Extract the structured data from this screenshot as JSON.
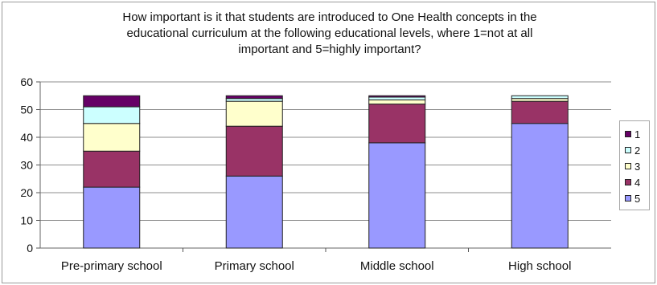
{
  "chart_data": {
    "type": "bar",
    "stacked": true,
    "title": "How important is it that students are introduced to One Health concepts in the educational curriculum at the following educational levels, where 1=not at all important and 5=highly important?",
    "title_lines": [
      "How important is it that students are introduced to One Health concepts in the",
      "educational curriculum at the following educational levels, where 1=not at all",
      "important and 5=highly important?"
    ],
    "categories": [
      "Pre-primary school",
      "Primary school",
      "Middle school",
      "High school"
    ],
    "series": [
      {
        "name": "5",
        "color": "#9999ff",
        "values": [
          22,
          26,
          38,
          45
        ]
      },
      {
        "name": "4",
        "color": "#993366",
        "values": [
          13,
          18,
          14,
          8
        ]
      },
      {
        "name": "3",
        "color": "#ffffcc",
        "values": [
          10,
          9,
          1.5,
          1
        ]
      },
      {
        "name": "2",
        "color": "#ccffff",
        "values": [
          6,
          1,
          1,
          1
        ]
      },
      {
        "name": "1",
        "color": "#660066",
        "values": [
          4,
          1,
          0.5,
          0
        ]
      }
    ],
    "ylim": [
      0,
      60
    ],
    "yticks": [
      0,
      10,
      20,
      30,
      40,
      50,
      60
    ],
    "xlabel": "",
    "ylabel": "",
    "grid": true,
    "legend": "right",
    "legend_order": [
      "1",
      "2",
      "3",
      "4",
      "5"
    ]
  }
}
